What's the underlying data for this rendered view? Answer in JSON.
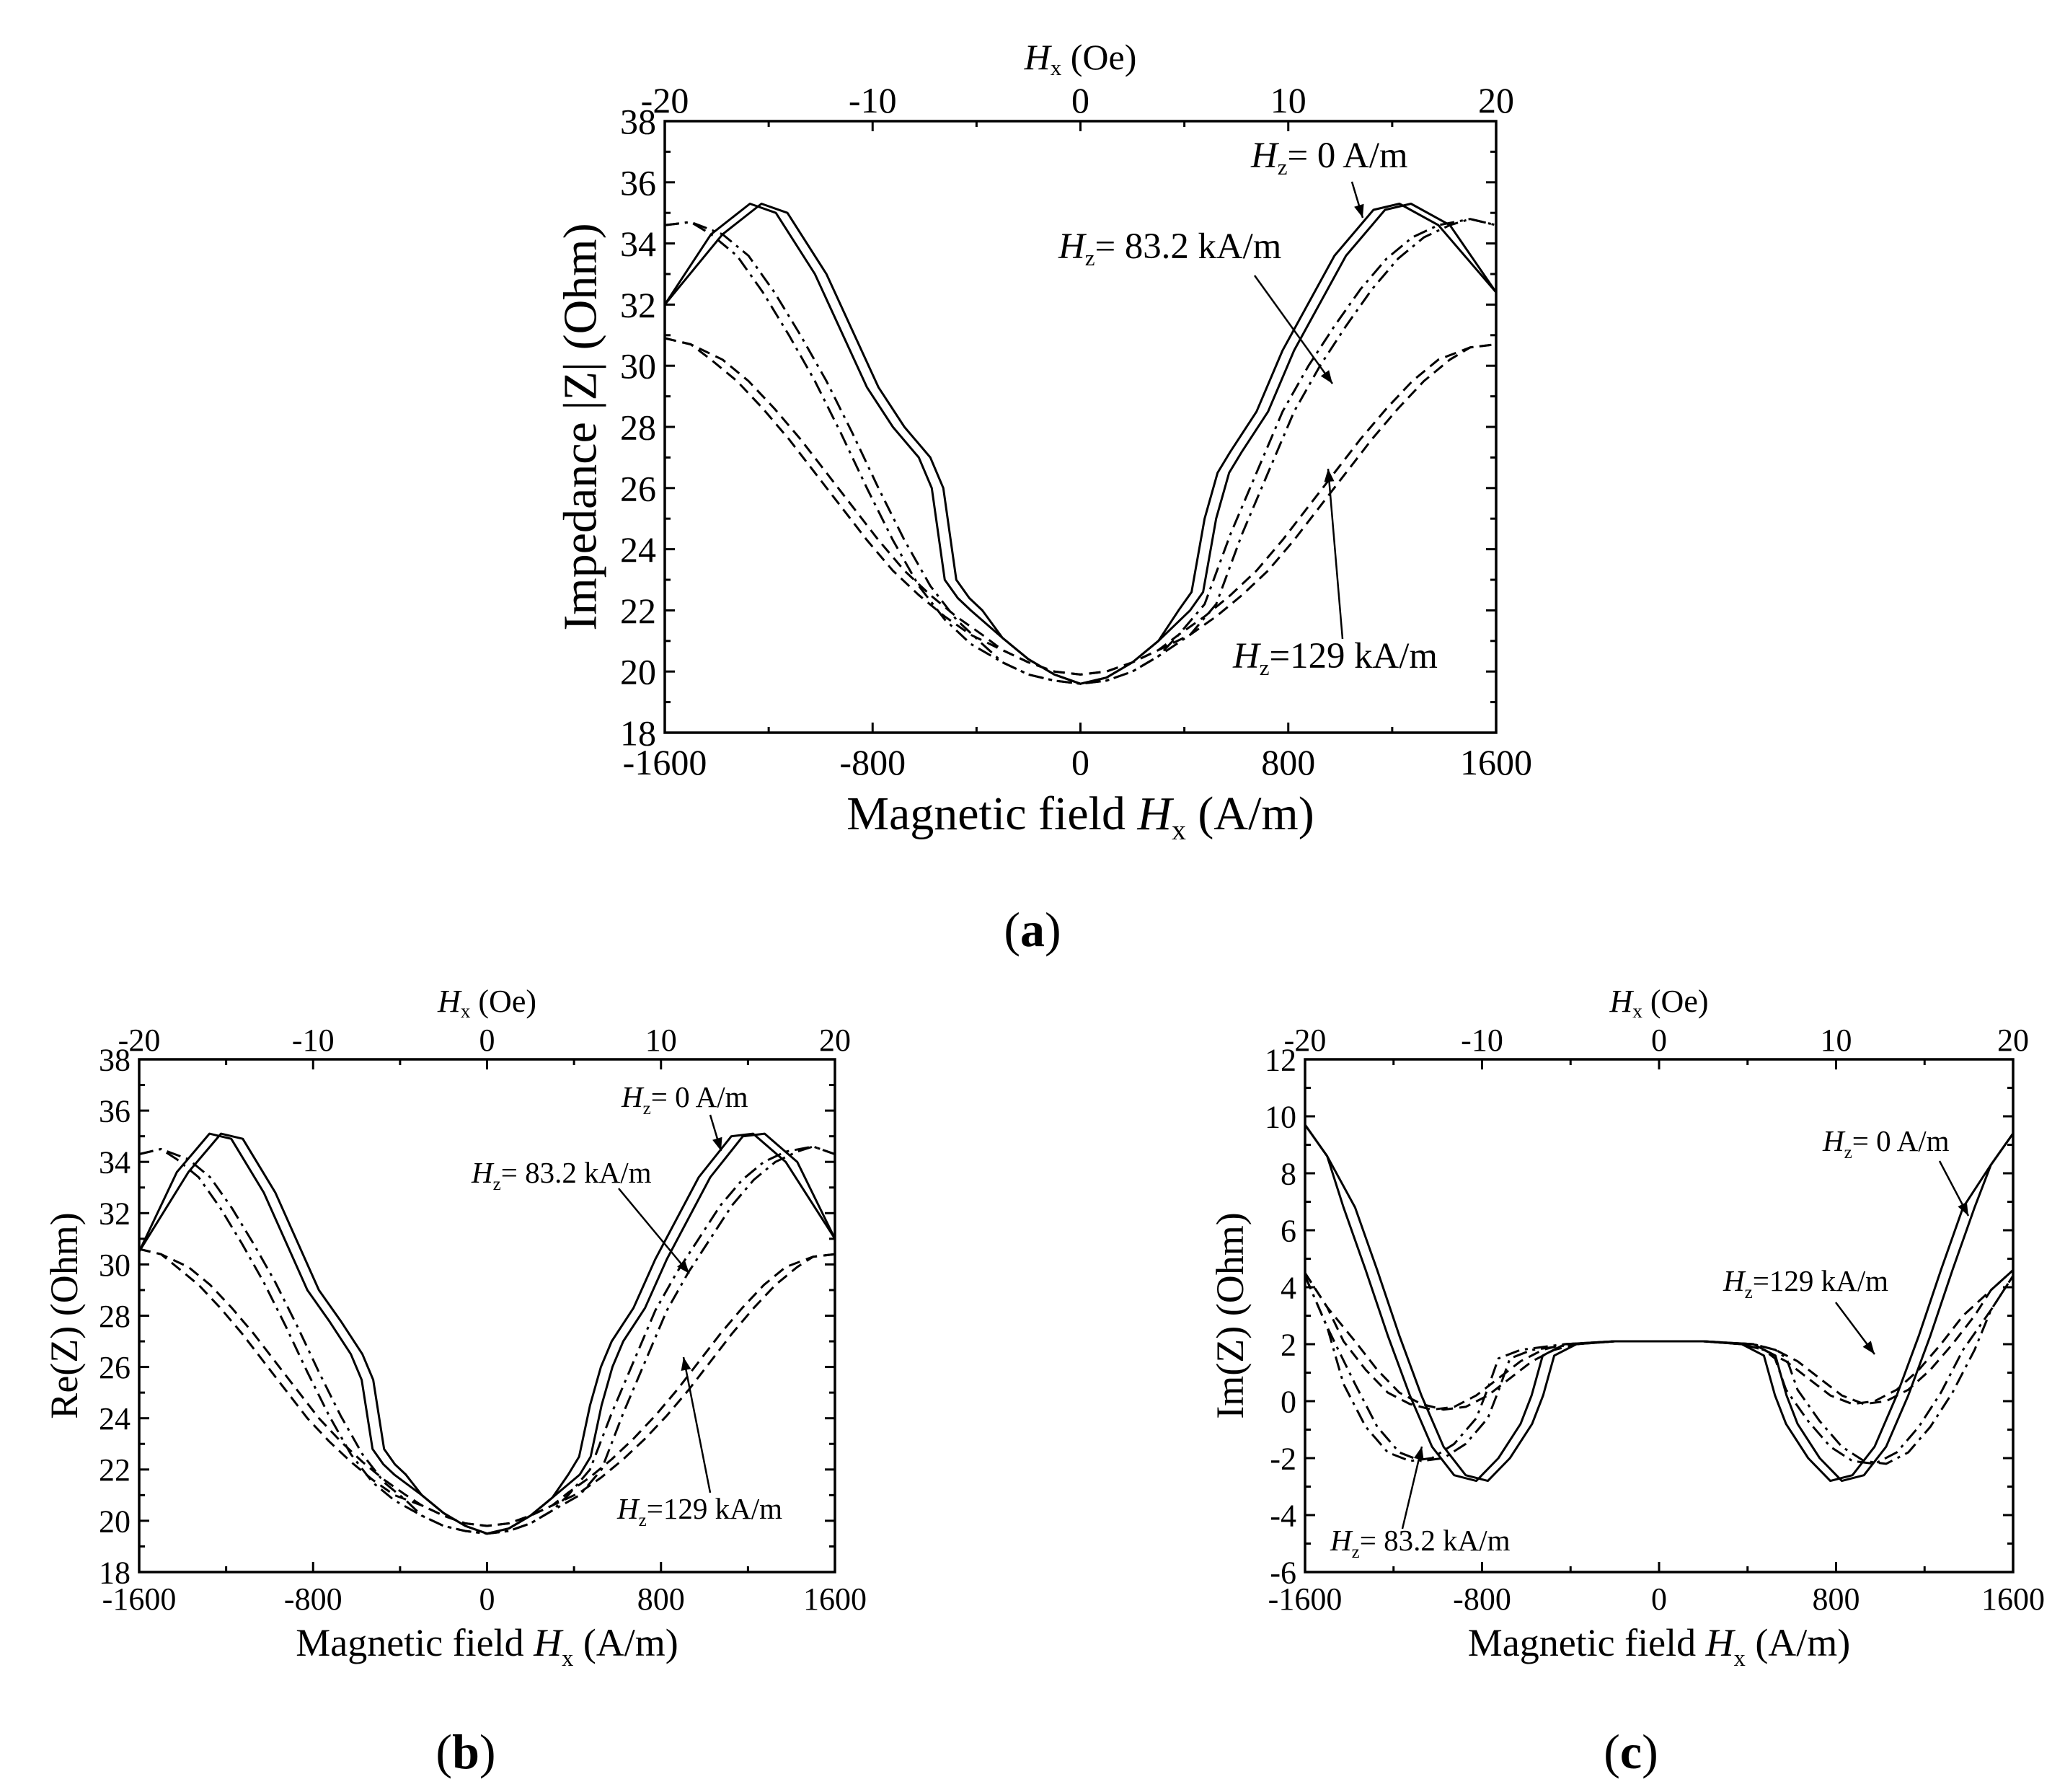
{
  "chart_data": [
    {
      "id": "a",
      "type": "line",
      "panel_label": "a",
      "xlabel_main": "Magnetic field ",
      "xlabel_var": "H",
      "xlabel_sub": "x",
      "xlabel_unit": " (A/m)",
      "ylabel": "Impedance |Z| (Ohm)",
      "top_axis_var": "H",
      "top_axis_sub": "x",
      "top_axis_unit": " (Oe)",
      "xlim": [
        -1600,
        1600
      ],
      "ylim": [
        18,
        38
      ],
      "x_ticks": [
        -1600,
        -800,
        0,
        800,
        1600
      ],
      "x_tick_labels": [
        "-1600",
        "-800",
        "0",
        "800",
        "1600"
      ],
      "y_ticks": [
        18,
        20,
        22,
        24,
        26,
        28,
        30,
        32,
        34,
        36,
        38
      ],
      "y_tick_labels": [
        "18",
        "20",
        "22",
        "24",
        "26",
        "28",
        "30",
        "32",
        "34",
        "36",
        "38"
      ],
      "top_ticks": [
        -20,
        -10,
        0,
        10,
        20
      ],
      "top_tick_labels": [
        "-20",
        "-10",
        "0",
        "10",
        "20"
      ],
      "series": [
        {
          "name": "Hz = 0 A/m",
          "dash": "solid",
          "x": [
            -1600,
            -1400,
            -1250,
            -1150,
            -1000,
            -800,
            -700,
            -600,
            -550,
            -500,
            -450,
            -400,
            -300,
            -200,
            -100,
            0,
            100,
            200,
            300,
            400,
            450,
            500,
            550,
            600,
            700,
            800,
            1000,
            1150,
            1250,
            1400,
            1600
          ],
          "y": [
            32.0,
            34.3,
            35.3,
            35.0,
            33.0,
            29.3,
            28.0,
            27.0,
            26.0,
            23.0,
            22.4,
            22.0,
            21.1,
            20.4,
            19.9,
            19.6,
            19.8,
            20.3,
            21.0,
            22.0,
            22.6,
            25.0,
            26.5,
            27.2,
            28.5,
            30.5,
            33.6,
            35.1,
            35.3,
            34.6,
            32.4
          ]
        },
        {
          "name": "Hz = 83.2 kA/m",
          "dash": "dash-dot",
          "x": [
            -1600,
            -1500,
            -1400,
            -1300,
            -1200,
            -1100,
            -1000,
            -900,
            -800,
            -700,
            -600,
            -500,
            -400,
            -300,
            -200,
            -100,
            0,
            100,
            200,
            300,
            400,
            500,
            600,
            700,
            800,
            900,
            1000,
            1100,
            1200,
            1300,
            1400,
            1500,
            1600
          ],
          "y": [
            34.6,
            34.7,
            34.3,
            33.6,
            32.4,
            31.0,
            29.5,
            27.8,
            26.0,
            24.3,
            22.8,
            21.7,
            20.9,
            20.3,
            19.9,
            19.7,
            19.6,
            19.7,
            20.0,
            20.5,
            21.2,
            22.2,
            24.5,
            26.5,
            28.5,
            30.0,
            31.3,
            32.5,
            33.5,
            34.2,
            34.6,
            34.8,
            34.6
          ]
        },
        {
          "name": "Hz = 129 kA/m",
          "dash": "dashed",
          "x": [
            -1600,
            -1500,
            -1400,
            -1300,
            -1200,
            -1100,
            -1000,
            -900,
            -800,
            -700,
            -600,
            -500,
            -400,
            -300,
            -200,
            -100,
            0,
            100,
            200,
            300,
            400,
            500,
            600,
            700,
            800,
            900,
            1000,
            1100,
            1200,
            1300,
            1400,
            1500,
            1600
          ],
          "y": [
            30.9,
            30.7,
            30.2,
            29.5,
            28.6,
            27.6,
            26.5,
            25.4,
            24.3,
            23.3,
            22.5,
            21.8,
            21.2,
            20.7,
            20.3,
            20.0,
            19.9,
            20.0,
            20.3,
            20.7,
            21.2,
            21.8,
            22.5,
            23.3,
            24.3,
            25.4,
            26.5,
            27.6,
            28.6,
            29.5,
            30.2,
            30.6,
            30.7
          ]
        }
      ],
      "annotations": [
        {
          "var": "H",
          "sub": "z",
          "text": "= 0 A/m"
        },
        {
          "var": "H",
          "sub": "z",
          "text": "= 83.2 kA/m"
        },
        {
          "var": "H",
          "sub": "z",
          "text": "=129 kA/m"
        }
      ]
    },
    {
      "id": "b",
      "type": "line",
      "panel_label": "b",
      "xlabel_main": "Magnetic field ",
      "xlabel_var": "H",
      "xlabel_sub": "x",
      "xlabel_unit": " (A/m)",
      "ylabel": "Re(Z) (Ohm)",
      "top_axis_var": "H",
      "top_axis_sub": "x",
      "top_axis_unit": " (Oe)",
      "xlim": [
        -1600,
        1600
      ],
      "ylim": [
        18,
        38
      ],
      "x_ticks": [
        -1600,
        -800,
        0,
        800,
        1600
      ],
      "x_tick_labels": [
        "-1600",
        "-800",
        "0",
        "800",
        "1600"
      ],
      "y_ticks": [
        18,
        20,
        22,
        24,
        26,
        28,
        30,
        32,
        34,
        36,
        38
      ],
      "y_tick_labels": [
        "18",
        "20",
        "22",
        "24",
        "26",
        "28",
        "30",
        "32",
        "34",
        "36",
        "38"
      ],
      "top_ticks": [
        -20,
        -10,
        0,
        10,
        20
      ],
      "top_tick_labels": [
        "-20",
        "-10",
        "0",
        "10",
        "20"
      ],
      "series": [
        {
          "name": "Hz = 0 A/m",
          "dash": "solid",
          "x": [
            -1600,
            -1400,
            -1250,
            -1150,
            -1000,
            -800,
            -700,
            -600,
            -550,
            -500,
            -450,
            -400,
            -300,
            -200,
            -100,
            0,
            100,
            200,
            300,
            400,
            450,
            500,
            550,
            600,
            700,
            800,
            1000,
            1150,
            1250,
            1400,
            1600
          ],
          "y": [
            30.5,
            33.6,
            35.1,
            34.9,
            32.8,
            29.0,
            27.8,
            26.5,
            25.5,
            22.8,
            22.2,
            21.8,
            21.0,
            20.3,
            19.8,
            19.5,
            19.7,
            20.2,
            20.9,
            21.8,
            22.5,
            24.5,
            26.0,
            27.0,
            28.3,
            30.2,
            33.4,
            35.0,
            35.1,
            34.0,
            31.0
          ]
        },
        {
          "name": "Hz = 83.2 kA/m",
          "dash": "dash-dot",
          "x": [
            -1600,
            -1500,
            -1400,
            -1300,
            -1200,
            -1100,
            -1000,
            -900,
            -800,
            -700,
            -600,
            -500,
            -400,
            -300,
            -200,
            -100,
            0,
            100,
            200,
            300,
            400,
            500,
            600,
            700,
            800,
            900,
            1000,
            1100,
            1200,
            1300,
            1400,
            1500,
            1600
          ],
          "y": [
            34.3,
            34.5,
            34.1,
            33.4,
            32.2,
            30.8,
            29.3,
            27.6,
            25.8,
            24.1,
            22.6,
            21.5,
            20.8,
            20.2,
            19.8,
            19.6,
            19.5,
            19.6,
            19.9,
            20.4,
            21.0,
            22.0,
            24.2,
            26.2,
            28.2,
            29.7,
            31.0,
            32.3,
            33.3,
            34.0,
            34.4,
            34.6,
            34.3
          ]
        },
        {
          "name": "Hz = 129 kA/m",
          "dash": "dashed",
          "x": [
            -1600,
            -1500,
            -1400,
            -1300,
            -1200,
            -1100,
            -1000,
            -900,
            -800,
            -700,
            -600,
            -500,
            -400,
            -300,
            -200,
            -100,
            0,
            100,
            200,
            300,
            400,
            500,
            600,
            700,
            800,
            900,
            1000,
            1100,
            1200,
            1300,
            1400,
            1500,
            1600
          ],
          "y": [
            30.6,
            30.4,
            29.9,
            29.2,
            28.3,
            27.3,
            26.2,
            25.1,
            24.0,
            23.1,
            22.3,
            21.6,
            21.0,
            20.6,
            20.2,
            19.9,
            19.8,
            19.9,
            20.2,
            20.6,
            21.1,
            21.7,
            22.4,
            23.2,
            24.1,
            25.1,
            26.2,
            27.3,
            28.3,
            29.2,
            29.9,
            30.3,
            30.4
          ]
        }
      ],
      "annotations": [
        {
          "var": "H",
          "sub": "z",
          "text": "= 0 A/m"
        },
        {
          "var": "H",
          "sub": "z",
          "text": "= 83.2 kA/m"
        },
        {
          "var": "H",
          "sub": "z",
          "text": "=129 kA/m"
        }
      ]
    },
    {
      "id": "c",
      "type": "line",
      "panel_label": "c",
      "xlabel_main": "Magnetic field ",
      "xlabel_var": "H",
      "xlabel_sub": "x",
      "xlabel_unit": " (A/m)",
      "ylabel": "Im(Z) (Ohm)",
      "top_axis_var": "H",
      "top_axis_sub": "x",
      "top_axis_unit": " (Oe)",
      "xlim": [
        -1600,
        1600
      ],
      "ylim": [
        -6,
        12
      ],
      "x_ticks": [
        -1600,
        -800,
        0,
        800,
        1600
      ],
      "x_tick_labels": [
        "-1600",
        "-800",
        "0",
        "800",
        "1600"
      ],
      "y_ticks": [
        -6,
        -4,
        -2,
        0,
        2,
        4,
        6,
        8,
        10,
        12
      ],
      "y_tick_labels": [
        "-6",
        "-4",
        "-2",
        "0",
        "2",
        "4",
        "6",
        "8",
        "10",
        "12"
      ],
      "top_ticks": [
        -20,
        -10,
        0,
        10,
        20
      ],
      "top_tick_labels": [
        "-20",
        "-10",
        "0",
        "10",
        "20"
      ],
      "series": [
        {
          "name": "Hz = 0 A/m",
          "dash": "solid",
          "x": [
            -1600,
            -1500,
            -1400,
            -1300,
            -1200,
            -1100,
            -1000,
            -900,
            -800,
            -700,
            -600,
            -550,
            -500,
            -400,
            -200,
            0,
            200,
            400,
            500,
            550,
            600,
            700,
            800,
            900,
            1000,
            1100,
            1200,
            1300,
            1400,
            1500,
            1600
          ],
          "y": [
            9.7,
            8.6,
            6.8,
            4.6,
            2.3,
            0.2,
            -1.6,
            -2.6,
            -2.8,
            -2.0,
            -0.8,
            0.2,
            1.6,
            2.0,
            2.1,
            2.1,
            2.1,
            2.0,
            1.6,
            0.2,
            -0.8,
            -2.0,
            -2.8,
            -2.6,
            -1.6,
            0.2,
            2.3,
            4.6,
            6.8,
            8.3,
            9.4
          ]
        },
        {
          "name": "Hz = 83.2 kA/m",
          "dash": "dash-dot",
          "x": [
            -1600,
            -1500,
            -1400,
            -1300,
            -1200,
            -1100,
            -1000,
            -900,
            -800,
            -750,
            -700,
            -600,
            -400,
            -200,
            0,
            200,
            400,
            500,
            550,
            600,
            700,
            800,
            900,
            1000,
            1100,
            1200,
            1300,
            1400,
            1500,
            1600
          ],
          "y": [
            4.4,
            2.6,
            0.6,
            -0.9,
            -1.8,
            -2.1,
            -2.0,
            -1.5,
            -0.6,
            0.4,
            1.5,
            1.8,
            2.0,
            2.1,
            2.1,
            2.1,
            2.0,
            1.8,
            1.5,
            0.4,
            -0.7,
            -1.6,
            -2.1,
            -2.2,
            -1.8,
            -0.9,
            0.3,
            1.8,
            3.2,
            4.4
          ]
        },
        {
          "name": "Hz = 129 kA/m",
          "dash": "dashed",
          "x": [
            -1600,
            -1500,
            -1400,
            -1300,
            -1200,
            -1100,
            -1000,
            -900,
            -800,
            -700,
            -600,
            -500,
            -400,
            -200,
            0,
            200,
            400,
            500,
            600,
            700,
            800,
            900,
            1000,
            1100,
            1200,
            1300,
            1400,
            1500,
            1600
          ],
          "y": [
            4.5,
            3.3,
            2.1,
            1.1,
            0.3,
            -0.1,
            -0.3,
            -0.2,
            0.2,
            0.8,
            1.4,
            1.8,
            2.0,
            2.1,
            2.1,
            2.1,
            2.0,
            1.8,
            1.4,
            0.8,
            0.2,
            -0.1,
            0.0,
            0.4,
            1.1,
            2.0,
            3.0,
            3.9,
            4.6
          ]
        }
      ],
      "annotations": [
        {
          "var": "H",
          "sub": "z",
          "text": "= 0 A/m"
        },
        {
          "var": "H",
          "sub": "z",
          "text": "=129 kA/m"
        },
        {
          "var": "H",
          "sub": "z",
          "text": "= 83.2 kA/m"
        }
      ]
    }
  ]
}
